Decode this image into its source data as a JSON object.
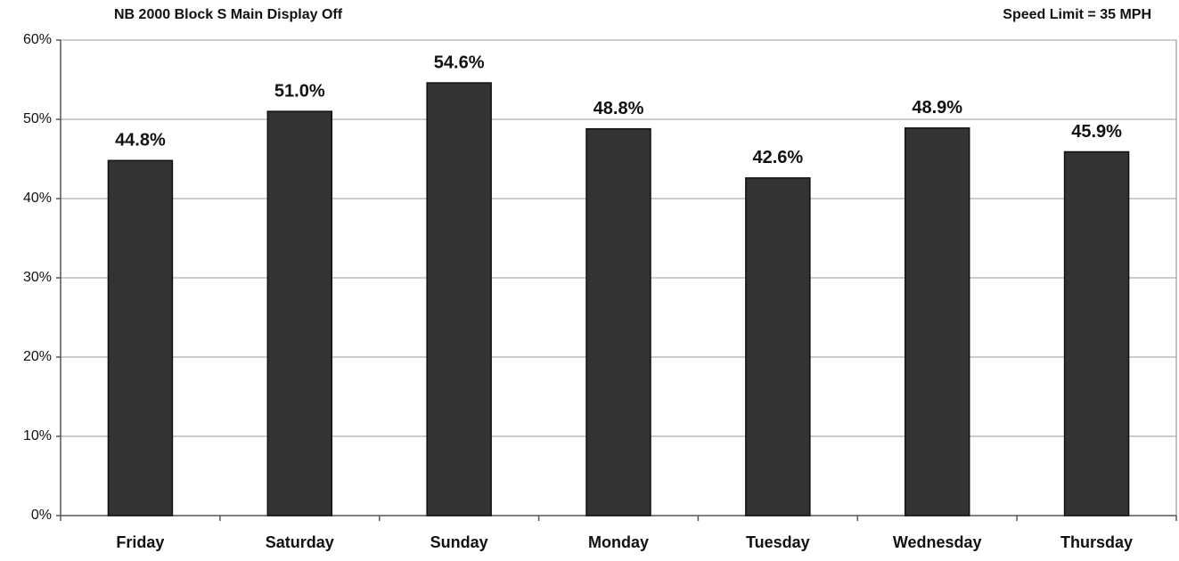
{
  "chart_data": {
    "type": "bar",
    "title": "NB 2000 Block S Main Display Off",
    "annotation": "Speed Limit = 35 MPH",
    "categories": [
      "Friday",
      "Saturday",
      "Sunday",
      "Monday",
      "Tuesday",
      "Wednesday",
      "Thursday"
    ],
    "values": [
      44.8,
      51.0,
      54.6,
      48.8,
      42.6,
      48.9,
      45.9
    ],
    "value_labels": [
      "44.8%",
      "51.0%",
      "54.6%",
      "48.8%",
      "42.6%",
      "48.9%",
      "45.9%"
    ],
    "color": "#333333",
    "ylim": [
      0,
      60
    ],
    "yticks": [
      {
        "value": 0,
        "label": "0%"
      },
      {
        "value": 10,
        "label": "10%"
      },
      {
        "value": 20,
        "label": "20%"
      },
      {
        "value": 30,
        "label": "30%"
      },
      {
        "value": 40,
        "label": "40%"
      },
      {
        "value": 50,
        "label": "50%"
      },
      {
        "value": 60,
        "label": "60%"
      }
    ],
    "grid": true
  }
}
